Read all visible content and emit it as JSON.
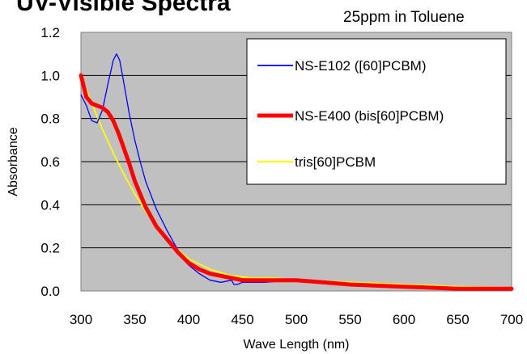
{
  "chart_data": {
    "type": "line",
    "title": "UV-Visible Spectra",
    "subtitle": "25ppm in Toluene",
    "xlabel": "Wave Length (nm)",
    "ylabel": "Absorbance",
    "xlim": [
      300,
      700
    ],
    "ylim": [
      0,
      1.2
    ],
    "x_ticks": [
      "300",
      "350",
      "400",
      "450",
      "500",
      "550",
      "600",
      "650",
      "700"
    ],
    "y_ticks": [
      "0.0",
      "0.2",
      "0.4",
      "0.6",
      "0.8",
      "1.0",
      "1.2"
    ],
    "grid": "horizontal",
    "plot_background": "#c0c0c0",
    "legend_placement": "top-right",
    "series": [
      {
        "name": "NS-E102 ([60]PCBM)",
        "color": "#0000ff",
        "x": [
          300,
          305,
          310,
          315,
          320,
          325,
          330,
          333,
          336,
          340,
          345,
          350,
          355,
          360,
          370,
          380,
          390,
          400,
          410,
          420,
          430,
          440,
          442,
          445,
          450,
          470,
          500,
          550,
          600,
          650,
          700
        ],
        "y": [
          0.91,
          0.86,
          0.79,
          0.78,
          0.84,
          0.96,
          1.07,
          1.1,
          1.07,
          0.96,
          0.82,
          0.7,
          0.6,
          0.51,
          0.38,
          0.28,
          0.19,
          0.12,
          0.08,
          0.05,
          0.04,
          0.05,
          0.03,
          0.03,
          0.04,
          0.04,
          0.05,
          0.03,
          0.02,
          0.01,
          0.01
        ]
      },
      {
        "name": "NS-E400 (bis[60]PCBM)",
        "color": "#ff0000",
        "x": [
          300,
          305,
          310,
          315,
          320,
          325,
          330,
          335,
          340,
          345,
          350,
          360,
          370,
          380,
          390,
          400,
          410,
          420,
          430,
          440,
          450,
          460,
          480,
          500,
          550,
          600,
          650,
          700
        ],
        "y": [
          1.0,
          0.9,
          0.87,
          0.86,
          0.85,
          0.83,
          0.79,
          0.73,
          0.66,
          0.59,
          0.51,
          0.39,
          0.3,
          0.24,
          0.18,
          0.13,
          0.1,
          0.08,
          0.07,
          0.06,
          0.05,
          0.05,
          0.05,
          0.05,
          0.03,
          0.02,
          0.01,
          0.01
        ]
      },
      {
        "name": "tris[60]PCBM",
        "color": "#ffff00",
        "x": [
          300,
          310,
          320,
          330,
          340,
          350,
          360,
          370,
          380,
          390,
          400,
          420,
          440,
          460,
          480,
          500,
          550,
          600,
          650,
          700
        ],
        "y": [
          1.0,
          0.87,
          0.75,
          0.64,
          0.54,
          0.45,
          0.37,
          0.3,
          0.24,
          0.19,
          0.15,
          0.1,
          0.07,
          0.06,
          0.06,
          0.05,
          0.04,
          0.03,
          0.02,
          0.015
        ]
      }
    ]
  }
}
